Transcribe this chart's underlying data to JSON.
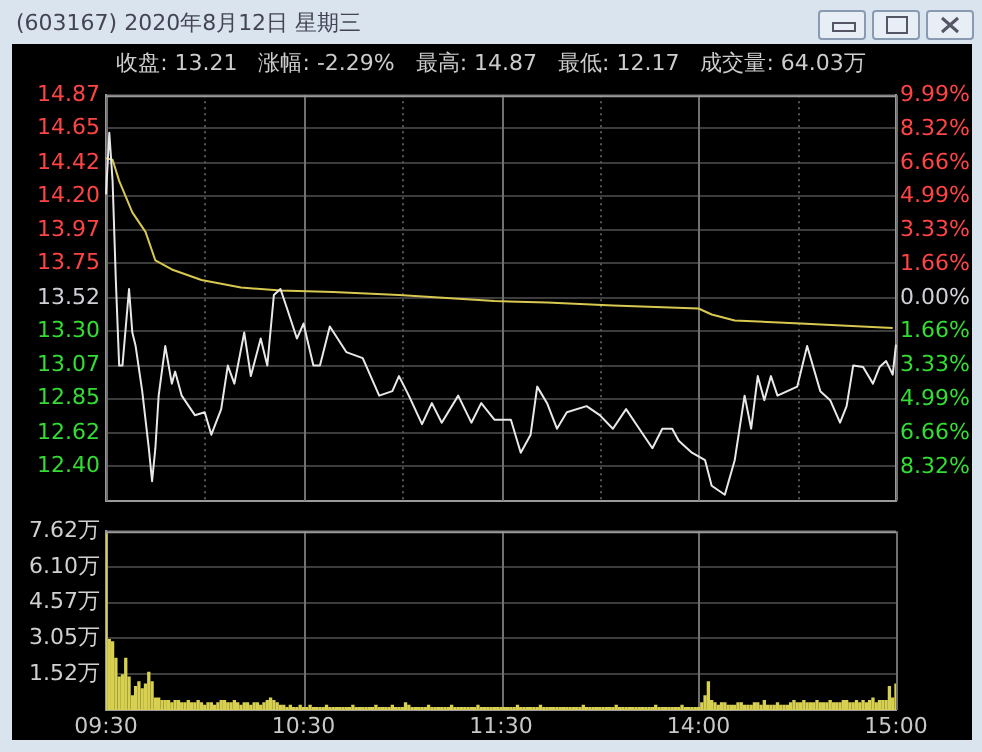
{
  "chart_data": [
    {
      "type": "line",
      "title": "(603167)  2020年8月12日  星期三",
      "subtitle": "收盘: 13.21   涨幅: -2.29%   最高: 14.87   最低: 12.17   成交量: 64.03万",
      "categories": [
        null,
        null,
        null,
        null,
        null,
        null,
        null,
        null,
        null,
        null,
        null,
        null,
        null,
        null,
        null,
        null,
        null,
        null,
        null,
        null,
        null,
        null,
        null,
        null,
        null,
        null,
        null,
        null,
        null,
        null,
        null,
        null,
        null,
        null,
        null,
        null,
        null,
        null,
        null,
        null,
        null,
        null,
        null,
        null,
        null,
        null,
        null,
        null,
        null,
        null,
        null,
        null,
        null,
        null,
        null,
        null,
        null,
        null,
        null,
        null,
        null,
        null,
        null,
        null,
        null,
        null,
        null,
        null,
        null,
        null,
        null,
        null,
        null,
        null,
        null,
        null,
        null,
        null,
        null,
        null,
        null,
        null,
        null,
        null,
        null,
        null,
        null,
        null,
        null,
        null,
        null,
        null,
        null,
        null,
        null,
        null,
        null,
        null,
        null,
        null,
        null,
        null,
        null,
        null,
        null,
        null,
        null,
        null,
        null,
        null,
        null,
        null,
        null,
        null,
        null,
        null,
        null,
        null,
        null,
        null,
        null,
        null,
        null,
        null,
        null,
        null,
        null,
        null,
        null,
        null,
        null,
        null,
        null,
        null,
        null,
        null,
        null,
        null,
        null,
        null,
        null,
        null,
        null,
        null,
        null,
        null,
        null,
        null,
        null,
        null,
        null,
        null,
        null,
        null,
        null,
        null,
        null,
        null,
        null,
        null,
        null,
        null,
        null,
        null,
        null,
        null,
        null,
        null,
        null,
        null,
        null,
        null,
        null,
        null,
        null,
        null,
        null,
        null,
        null,
        null,
        null,
        null,
        null,
        null,
        null,
        null,
        null,
        null,
        null,
        null,
        null,
        null,
        null,
        null,
        null,
        null,
        null,
        null,
        null,
        null,
        null,
        null,
        null,
        null,
        null,
        null,
        null,
        null,
        null,
        null,
        null,
        null,
        null,
        null,
        null,
        null,
        null,
        null,
        null,
        null,
        null,
        null,
        null,
        null,
        null,
        null,
        null,
        null,
        null,
        null,
        null,
        null,
        null,
        null,
        null,
        null,
        null,
        null,
        null,
        null,
        null
      ],
      "ylim": [
        12.17,
        14.87
      ],
      "yticks": [
        14.87,
        14.65,
        14.42,
        {
          "value": 14.2,
          "label": "14.20"
        },
        13.97,
        13.75,
        13.52,
        {
          "value": 13.3,
          "label": "13.30"
        },
        13.07,
        12.85,
        12.62,
        {
          "value": 12.4,
          "label": "12.40"
        }
      ],
      "y2lim": [
        -9.99,
        9.99
      ],
      "y2ticks": [
        {
          "value": 9.99,
          "label": "9.99%"
        },
        {
          "value": 8.32,
          "label": "8.32%"
        },
        {
          "value": 6.66,
          "label": "6.66%"
        },
        {
          "value": 4.99,
          "label": "4.99%"
        },
        {
          "value": 3.33,
          "label": "3.33%"
        },
        {
          "value": 1.66,
          "label": "1.66%"
        },
        {
          "value": 0,
          "label": "0.00%"
        },
        {
          "value": -1.66,
          "label": "1.66%"
        },
        {
          "value": -3.33,
          "label": "3.33%"
        },
        {
          "value": -4.99,
          "label": "4.99%"
        },
        {
          "value": -6.66,
          "label": "6.66%"
        },
        {
          "value": -8.32,
          "label": "8.32%"
        }
      ],
      "tick_labels": "y",
      "grid": true,
      "legend": false,
      "series": [
        {
          "color": "#e8e8e8",
          "values": [
            14.21,
            14.62,
            14.3,
            13.63,
            13.07,
            13.07,
            null,
            13.58,
            13.29,
            13.2,
            null,
            12.9,
            null,
            12.52,
            12.3,
            12.52,
            12.87,
            null,
            13.2,
            null,
            12.95,
            13.03,
            null,
            12.87,
            null,
            null,
            null,
            12.74,
            null,
            null,
            12.76,
            null,
            12.61,
            null,
            null,
            12.78,
            null,
            13.07,
            null,
            12.95,
            null,
            null,
            13.29,
            null,
            13.0,
            null,
            null,
            13.25,
            null,
            13.07,
            null,
            13.54,
            null,
            13.58,
            null,
            13.45,
            null,
            null,
            13.25,
            null,
            13.35,
            null,
            null,
            13.07,
            null,
            13.07,
            null,
            null,
            13.33,
            null,
            null,
            null,
            null,
            13.16,
            null,
            null,
            null,
            null,
            13.12,
            null,
            null,
            null,
            null,
            12.87,
            null,
            null,
            null,
            12.9,
            null,
            13.0,
            null,
            null,
            12.87,
            null,
            null,
            null,
            12.68,
            null,
            null,
            12.82,
            null,
            null,
            12.69,
            null,
            null,
            null,
            null,
            12.87,
            null,
            null,
            null,
            12.69,
            null,
            null,
            12.82,
            null,
            null,
            null,
            12.71,
            null,
            12.71,
            null,
            null,
            12.71,
            null,
            null,
            12.49,
            null,
            null,
            12.61,
            null,
            12.93,
            null,
            null,
            12.82,
            null,
            null,
            12.65,
            null,
            null,
            12.76,
            null,
            null,
            null,
            null,
            null,
            12.8,
            null,
            null,
            null,
            12.74,
            null,
            null,
            null,
            12.65,
            null,
            null,
            null,
            12.78,
            null,
            null,
            null,
            12.65,
            null,
            null,
            null,
            12.52,
            null,
            null,
            12.65,
            null,
            null,
            12.65,
            null,
            12.57,
            null,
            null,
            null,
            12.49,
            null,
            null,
            null,
            12.44,
            null,
            12.27,
            null,
            null,
            null,
            12.21,
            null,
            null,
            12.44,
            null,
            null,
            12.87,
            null,
            12.65,
            null,
            13.0,
            null,
            12.84,
            null,
            13.0,
            null,
            12.87,
            null,
            null,
            12.9,
            null,
            null,
            12.93,
            null,
            null,
            13.2,
            null,
            null,
            null,
            12.9,
            null,
            null,
            12.84,
            null,
            null,
            12.69,
            null,
            12.8,
            null,
            13.07,
            null,
            null,
            13.06,
            null,
            null,
            12.95,
            null,
            13.06,
            null,
            13.1,
            null,
            13.01,
            13.21
          ]
        },
        {
          "color": "#d8c850",
          "values": [
            14.45,
            null,
            14.44,
            null,
            14.3,
            null,
            null,
            null,
            14.09,
            null,
            null,
            null,
            13.96,
            null,
            null,
            13.77,
            null,
            null,
            null,
            null,
            13.71,
            null,
            null,
            null,
            null,
            null,
            null,
            null,
            null,
            13.64,
            null,
            null,
            null,
            null,
            null,
            null,
            null,
            null,
            null,
            null,
            null,
            13.59,
            null,
            null,
            null,
            null,
            null,
            null,
            null,
            null,
            null,
            null,
            null,
            13.57,
            null,
            null,
            null,
            null,
            null,
            null,
            null,
            null,
            null,
            null,
            null,
            null,
            null,
            null,
            null,
            13.56,
            null,
            null,
            null,
            null,
            null,
            null,
            null,
            null,
            null,
            null,
            null,
            null,
            null,
            null,
            null,
            null,
            null,
            null,
            null,
            13.54,
            null,
            null,
            null,
            null,
            null,
            null,
            null,
            null,
            null,
            null,
            null,
            null,
            null,
            null,
            null,
            null,
            null,
            null,
            null,
            null,
            null,
            null,
            null,
            null,
            null,
            null,
            null,
            null,
            13.5,
            null,
            null,
            null,
            null,
            null,
            null,
            null,
            null,
            null,
            null,
            null,
            null,
            null,
            null,
            null,
            13.49,
            null,
            null,
            null,
            null,
            null,
            null,
            null,
            null,
            null,
            null,
            null,
            null,
            null,
            null,
            null,
            null,
            null,
            null,
            null,
            13.47,
            null,
            null,
            null,
            null,
            null,
            null,
            null,
            null,
            null,
            null,
            null,
            null,
            null,
            null,
            null,
            null,
            null,
            null,
            null,
            null,
            null,
            null,
            null,
            null,
            null,
            13.45,
            null,
            null,
            null,
            13.41,
            null,
            null,
            null,
            null,
            null,
            null,
            13.37,
            null,
            null,
            null,
            null,
            null,
            null,
            null,
            null,
            null,
            null,
            null,
            null,
            null,
            null,
            null,
            null,
            null,
            null,
            null,
            13.35,
            null,
            null,
            null,
            null,
            null,
            null,
            null,
            null,
            null,
            null,
            null,
            null,
            null,
            null,
            null,
            null,
            null,
            null,
            null,
            null,
            null,
            null,
            null,
            null,
            null,
            null,
            null,
            13.32,
            null
          ]
        }
      ]
    },
    {
      "type": "bar",
      "color": "#d8d050",
      "categories": [
        "09:30",
        null,
        null,
        null,
        null,
        null,
        null,
        null,
        null,
        null,
        null,
        null,
        null,
        null,
        null,
        null,
        null,
        null,
        null,
        null,
        null,
        null,
        null,
        null,
        null,
        null,
        null,
        null,
        null,
        null,
        null,
        null,
        null,
        null,
        null,
        null,
        null,
        null,
        null,
        null,
        null,
        null,
        null,
        null,
        null,
        null,
        null,
        null,
        null,
        null,
        null,
        null,
        null,
        null,
        null,
        null,
        null,
        null,
        null,
        null,
        "10:30",
        null,
        null,
        null,
        null,
        null,
        null,
        null,
        null,
        null,
        null,
        null,
        null,
        null,
        null,
        null,
        null,
        null,
        null,
        null,
        null,
        null,
        null,
        null,
        null,
        null,
        null,
        null,
        null,
        null,
        null,
        null,
        null,
        null,
        null,
        null,
        null,
        null,
        null,
        null,
        null,
        null,
        null,
        null,
        null,
        null,
        null,
        null,
        null,
        null,
        null,
        null,
        null,
        null,
        null,
        null,
        null,
        null,
        null,
        null,
        "11:30",
        null,
        null,
        null,
        null,
        null,
        null,
        null,
        null,
        null,
        null,
        null,
        null,
        null,
        null,
        null,
        null,
        null,
        null,
        null,
        null,
        null,
        null,
        null,
        null,
        null,
        null,
        null,
        null,
        null,
        null,
        null,
        null,
        null,
        null,
        null,
        null,
        null,
        null,
        null,
        null,
        null,
        null,
        null,
        null,
        null,
        null,
        null,
        null,
        null,
        null,
        null,
        null,
        null,
        null,
        null,
        null,
        null,
        null,
        null,
        "14:00",
        null,
        null,
        null,
        null,
        null,
        null,
        null,
        null,
        null,
        null,
        null,
        null,
        null,
        null,
        null,
        null,
        null,
        null,
        null,
        null,
        null,
        null,
        null,
        null,
        null,
        null,
        null,
        null,
        null,
        null,
        null,
        null,
        null,
        null,
        null,
        null,
        null,
        null,
        null,
        null,
        null,
        null,
        null,
        null,
        null,
        null,
        null,
        null,
        null,
        null,
        null,
        null,
        null,
        null,
        null,
        null,
        null,
        null,
        null,
        "15:00"
      ],
      "ylim": [
        0,
        7.62
      ],
      "yticks": [
        {
          "value": 1.52,
          "label": "1.52万"
        },
        {
          "value": 3.05,
          "label": "3.05万"
        },
        {
          "value": 4.57,
          "label": "4.57万"
        },
        {
          "value": 6.1,
          "label": "6.10万"
        },
        {
          "value": 7.62,
          "label": "7.62万"
        }
      ],
      "grid": true,
      "legend": false,
      "values": [
        7.5,
        3.0,
        2.9,
        2.2,
        1.4,
        1.5,
        2.2,
        1.4,
        0.6,
        1.0,
        1.2,
        0.9,
        1.1,
        1.6,
        1.2,
        0.5,
        0.5,
        0.4,
        0.4,
        0.4,
        0.3,
        0.4,
        0.4,
        0.3,
        0.3,
        0.4,
        0.3,
        0.3,
        0.4,
        0.3,
        0.2,
        0.3,
        0.3,
        0.2,
        0.3,
        0.4,
        0.4,
        0.3,
        0.3,
        0.4,
        0.3,
        0.2,
        0.3,
        0.3,
        0.2,
        0.3,
        0.3,
        0.2,
        0.3,
        0.4,
        0.5,
        0.4,
        0.3,
        0.2,
        0.2,
        0.1,
        0.2,
        0.1,
        0.1,
        0.2,
        0.1,
        0.1,
        0.2,
        0.1,
        0.1,
        0.1,
        0.1,
        0.2,
        0.1,
        0.1,
        0.1,
        0.1,
        0.1,
        0.1,
        0.1,
        0.2,
        0.1,
        0.1,
        0.1,
        0.1,
        0.1,
        0.1,
        0.2,
        0.1,
        0.1,
        0.1,
        0.1,
        0.2,
        0.1,
        0.1,
        0.1,
        0.3,
        0.2,
        0.1,
        0.1,
        0.1,
        0.1,
        0.1,
        0.2,
        0.1,
        0.1,
        0.1,
        0.1,
        0.1,
        0.1,
        0.2,
        0.1,
        0.1,
        0.1,
        0.1,
        0.1,
        0.1,
        0.1,
        0.2,
        0.1,
        0.1,
        0.1,
        0.1,
        0.1,
        0.1,
        0.1,
        0.1,
        0.1,
        0.1,
        0.1,
        0.2,
        0.1,
        0.1,
        0.1,
        0.1,
        0.1,
        0.1,
        0.2,
        0.1,
        0.1,
        0.1,
        0.1,
        0.1,
        0.1,
        0.1,
        0.1,
        0.1,
        0.1,
        0.1,
        0.1,
        0.2,
        0.1,
        0.1,
        0.1,
        0.1,
        0.1,
        0.1,
        0.1,
        0.1,
        0.1,
        0.2,
        0.1,
        0.1,
        0.1,
        0.1,
        0.1,
        0.1,
        0.1,
        0.1,
        0.1,
        0.1,
        0.1,
        0.2,
        0.1,
        0.1,
        0.1,
        0.1,
        0.1,
        0.1,
        0.1,
        0.2,
        0.1,
        0.1,
        0.1,
        0.1,
        0.1,
        0.3,
        0.6,
        1.2,
        0.4,
        0.3,
        0.2,
        0.3,
        0.3,
        0.2,
        0.2,
        0.2,
        0.3,
        0.3,
        0.2,
        0.2,
        0.2,
        0.3,
        0.3,
        0.2,
        0.4,
        0.2,
        0.2,
        0.2,
        0.3,
        0.2,
        0.2,
        0.2,
        0.3,
        0.4,
        0.3,
        0.3,
        0.4,
        0.3,
        0.3,
        0.3,
        0.4,
        0.3,
        0.3,
        0.3,
        0.4,
        0.3,
        0.3,
        0.3,
        0.4,
        0.4,
        0.3,
        0.3,
        0.4,
        0.3,
        0.4,
        0.3,
        0.4,
        0.5,
        0.3,
        0.4,
        0.4,
        0.4,
        1.0,
        0.5,
        1.1
      ]
    }
  ]
}
